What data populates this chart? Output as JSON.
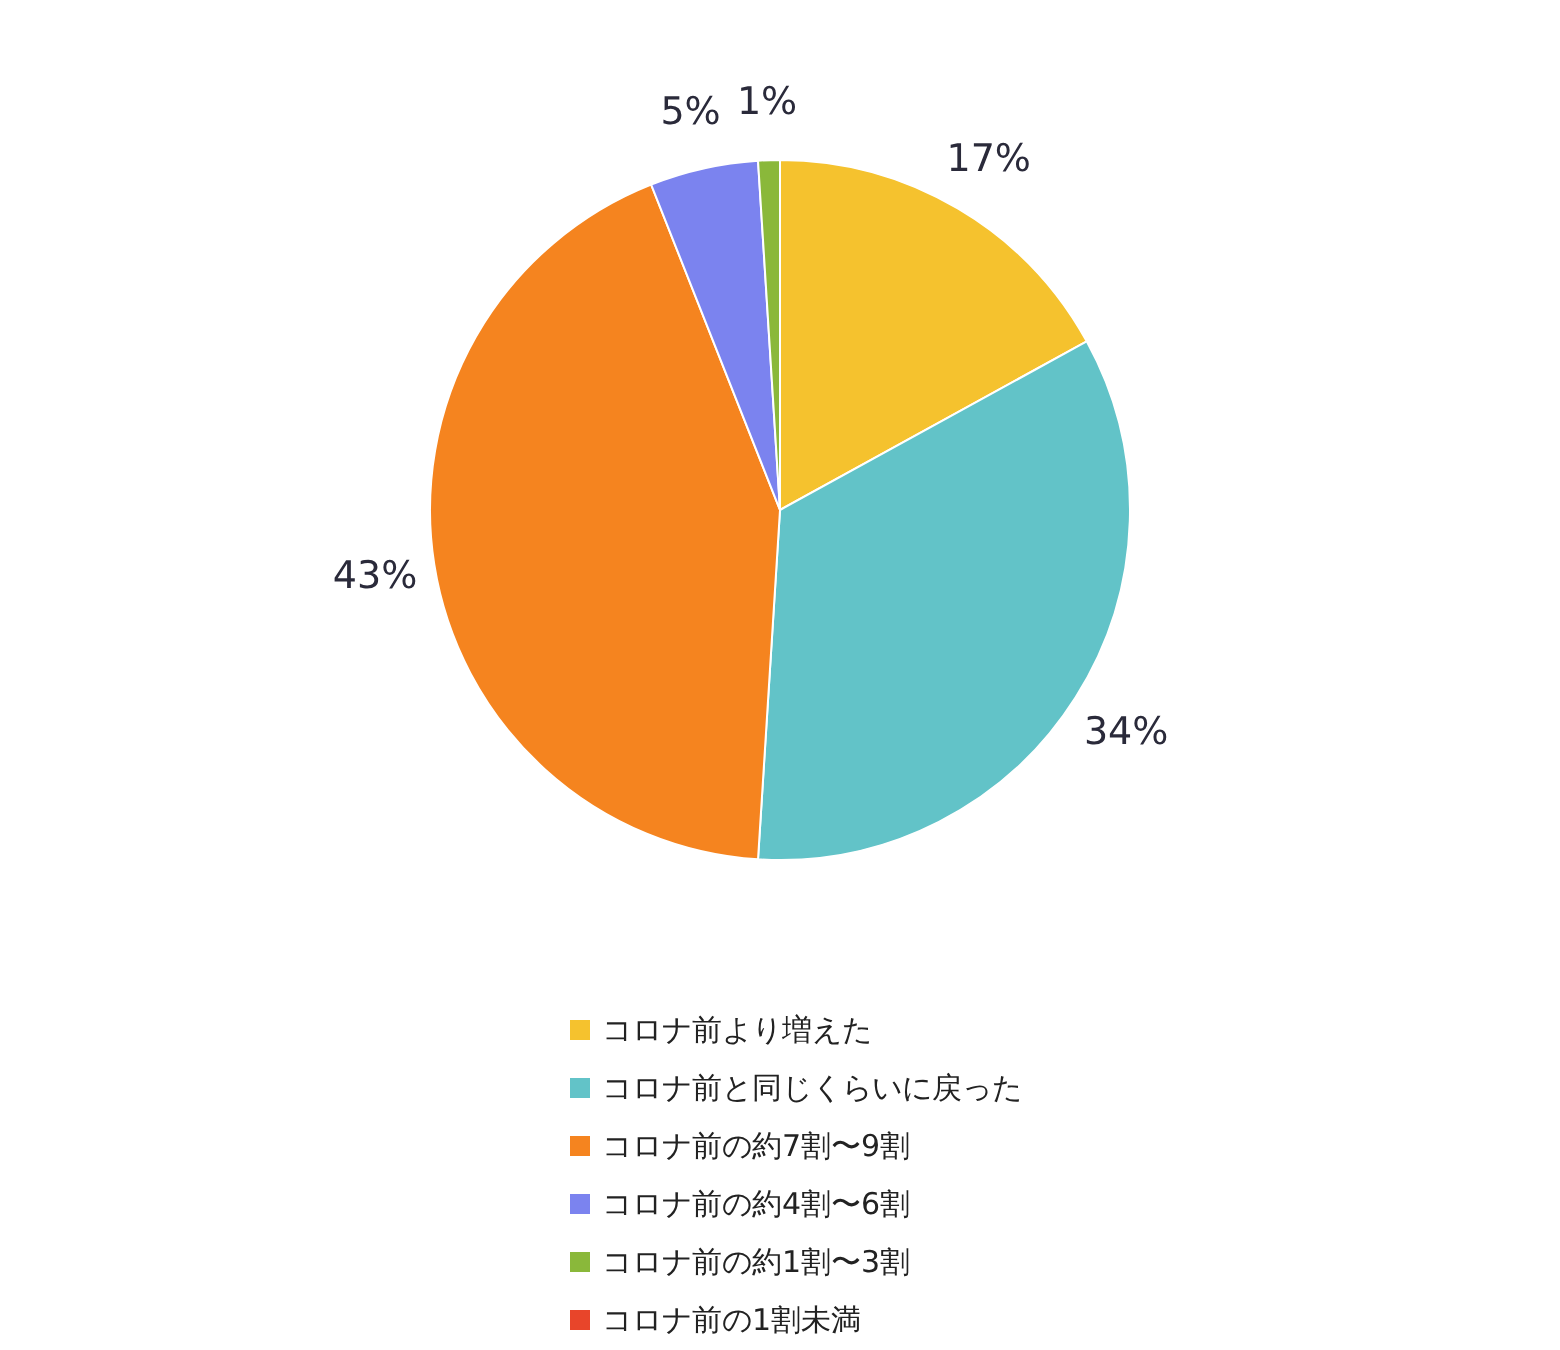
{
  "chart_data": {
    "type": "pie",
    "categories": [
      "コロナ前より増えた",
      "コロナ前と同じくらいに戻った",
      "コロナ前の約7割〜9割",
      "コロナ前の約4割〜6割",
      "コロナ前の約1割〜3割",
      "コロナ前の1割未満"
    ],
    "values": [
      17,
      34,
      43,
      5,
      1,
      0
    ],
    "value_labels": [
      "17%",
      "34%",
      "43%",
      "5%",
      "1%",
      null
    ],
    "colors": [
      "#f5c22e",
      "#62c3c8",
      "#f5841f",
      "#7b83ef",
      "#8ab83a",
      "#e8452a"
    ],
    "legend": "bottom"
  }
}
